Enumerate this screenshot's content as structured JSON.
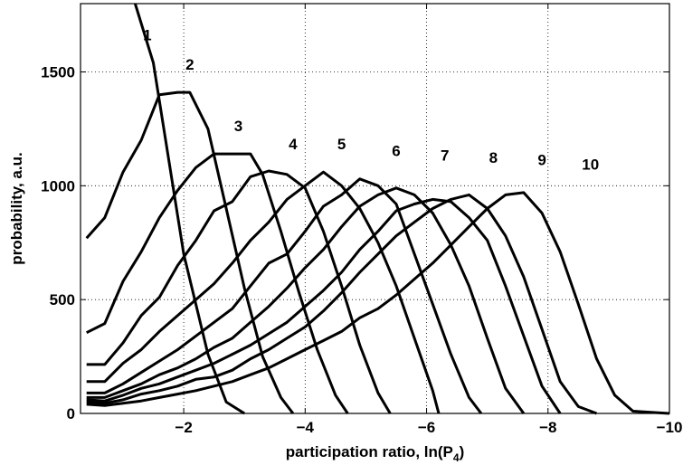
{
  "chart_data": {
    "type": "line",
    "xlabel": "participation ratio,   ln(P",
    "xlabel_sub": "4",
    "xlabel_end": ")",
    "ylabel": "probability,  a.u.",
    "xlim": [
      -0.3,
      -10
    ],
    "ylim": [
      0,
      1800
    ],
    "xticks": [
      {
        "value": -2,
        "label": "−2"
      },
      {
        "value": -4,
        "label": "−4"
      },
      {
        "value": -6,
        "label": "−6"
      },
      {
        "value": -8,
        "label": "−8"
      },
      {
        "value": -10,
        "label": "−10"
      }
    ],
    "yticks": [
      {
        "value": 0,
        "label": "0"
      },
      {
        "value": 500,
        "label": "500"
      },
      {
        "value": 1000,
        "label": "1000"
      },
      {
        "value": 1500,
        "label": "1500"
      }
    ],
    "grid": true,
    "series": [
      {
        "name": "1",
        "label_pos": [
          -1.4,
          1640
        ],
        "x": [
          -1.2,
          -1.5,
          -2.0,
          -2.4,
          -2.7,
          -3.0
        ],
        "y": [
          1800,
          1540,
          700,
          260,
          50,
          0
        ]
      },
      {
        "name": "2",
        "label_pos": [
          -2.1,
          1510
        ],
        "x": [
          -0.4,
          -0.7,
          -1.0,
          -1.3,
          -1.6,
          -1.9,
          -2.1,
          -2.4,
          -2.7,
          -3.0,
          -3.3,
          -3.6,
          -3.8
        ],
        "y": [
          770,
          860,
          1060,
          1200,
          1400,
          1410,
          1410,
          1250,
          900,
          550,
          250,
          70,
          0
        ]
      },
      {
        "name": "3",
        "label_pos": [
          -2.9,
          1240
        ],
        "x": [
          -0.4,
          -0.7,
          -1.0,
          -1.3,
          -1.6,
          -1.9,
          -2.2,
          -2.5,
          -2.8,
          -3.1,
          -3.3,
          -3.6,
          -3.9,
          -4.2,
          -4.5,
          -4.7
        ],
        "y": [
          355,
          395,
          580,
          710,
          860,
          980,
          1080,
          1140,
          1140,
          1140,
          1050,
          800,
          530,
          280,
          80,
          0
        ]
      },
      {
        "name": "4",
        "label_pos": [
          -3.8,
          1160
        ],
        "x": [
          -0.4,
          -0.7,
          -1.0,
          -1.3,
          -1.6,
          -1.9,
          -2.2,
          -2.5,
          -2.8,
          -3.1,
          -3.4,
          -3.7,
          -4.0,
          -4.3,
          -4.6,
          -4.9,
          -5.2,
          -5.4
        ],
        "y": [
          215,
          215,
          310,
          430,
          510,
          650,
          760,
          890,
          930,
          1040,
          1065,
          1050,
          990,
          800,
          560,
          300,
          90,
          0
        ]
      },
      {
        "name": "5",
        "label_pos": [
          -4.6,
          1160
        ],
        "x": [
          -0.4,
          -0.7,
          -1.0,
          -1.3,
          -1.6,
          -1.9,
          -2.2,
          -2.5,
          -2.8,
          -3.1,
          -3.4,
          -3.7,
          -4.0,
          -4.3,
          -4.6,
          -4.9,
          -5.2,
          -5.5,
          -5.8,
          -6.1,
          -6.2
        ],
        "y": [
          140,
          140,
          220,
          280,
          360,
          430,
          500,
          570,
          660,
          760,
          840,
          940,
          1000,
          1060,
          1000,
          900,
          750,
          560,
          330,
          100,
          0
        ]
      },
      {
        "name": "6",
        "label_pos": [
          -5.5,
          1130
        ],
        "x": [
          -0.4,
          -0.7,
          -1.0,
          -1.3,
          -1.6,
          -1.9,
          -2.2,
          -2.5,
          -2.8,
          -3.1,
          -3.4,
          -3.7,
          -4.0,
          -4.3,
          -4.6,
          -4.9,
          -5.2,
          -5.5,
          -5.8,
          -6.1,
          -6.4,
          -6.7,
          -6.9
        ],
        "y": [
          90,
          90,
          130,
          180,
          230,
          280,
          340,
          400,
          460,
          560,
          660,
          700,
          800,
          910,
          960,
          1030,
          1000,
          920,
          700,
          480,
          260,
          70,
          0
        ]
      },
      {
        "name": "7",
        "label_pos": [
          -6.3,
          1110
        ],
        "x": [
          -0.4,
          -0.7,
          -1.0,
          -1.3,
          -1.6,
          -1.9,
          -2.2,
          -2.5,
          -2.8,
          -3.1,
          -3.4,
          -3.7,
          -4.0,
          -4.3,
          -4.6,
          -4.9,
          -5.2,
          -5.5,
          -5.8,
          -6.1,
          -6.4,
          -6.7,
          -7.0,
          -7.3,
          -7.6
        ],
        "y": [
          70,
          70,
          100,
          130,
          170,
          200,
          240,
          290,
          330,
          400,
          470,
          550,
          640,
          720,
          820,
          910,
          960,
          990,
          960,
          880,
          740,
          560,
          330,
          110,
          0
        ]
      },
      {
        "name": "8",
        "label_pos": [
          -7.1,
          1100
        ],
        "x": [
          -0.4,
          -0.7,
          -1.0,
          -1.3,
          -1.6,
          -1.9,
          -2.2,
          -2.5,
          -2.8,
          -3.1,
          -3.4,
          -3.7,
          -4.0,
          -4.3,
          -4.6,
          -4.9,
          -5.2,
          -5.5,
          -5.8,
          -6.1,
          -6.4,
          -6.7,
          -7.0,
          -7.3,
          -7.6,
          -7.9,
          -8.2
        ],
        "y": [
          60,
          55,
          80,
          110,
          130,
          160,
          190,
          220,
          260,
          300,
          350,
          400,
          470,
          540,
          620,
          720,
          800,
          890,
          920,
          940,
          930,
          860,
          760,
          560,
          340,
          120,
          0
        ]
      },
      {
        "name": "9",
        "label_pos": [
          -7.9,
          1090
        ],
        "x": [
          -0.4,
          -0.7,
          -1.0,
          -1.3,
          -1.6,
          -1.9,
          -2.2,
          -2.5,
          -2.8,
          -3.1,
          -3.4,
          -3.7,
          -4.0,
          -4.3,
          -4.6,
          -4.9,
          -5.2,
          -5.5,
          -5.8,
          -6.1,
          -6.4,
          -6.7,
          -7.0,
          -7.3,
          -7.6,
          -7.9,
          -8.2,
          -8.5,
          -8.8
        ],
        "y": [
          50,
          45,
          60,
          85,
          100,
          120,
          150,
          160,
          190,
          240,
          280,
          330,
          380,
          450,
          530,
          620,
          700,
          780,
          840,
          900,
          940,
          960,
          900,
          780,
          600,
          370,
          140,
          30,
          0
        ]
      },
      {
        "name": "10",
        "label_pos": [
          -8.7,
          1070
        ],
        "x": [
          -0.4,
          -0.7,
          -1.0,
          -1.3,
          -1.6,
          -1.9,
          -2.2,
          -2.5,
          -2.8,
          -3.1,
          -3.4,
          -3.7,
          -4.0,
          -4.3,
          -4.6,
          -4.9,
          -5.2,
          -5.5,
          -5.8,
          -6.1,
          -6.4,
          -6.7,
          -7.0,
          -7.3,
          -7.6,
          -7.9,
          -8.2,
          -8.5,
          -8.8,
          -9.1,
          -9.4,
          -10.0
        ],
        "y": [
          40,
          35,
          45,
          55,
          70,
          85,
          100,
          120,
          140,
          170,
          200,
          240,
          280,
          320,
          360,
          420,
          460,
          520,
          590,
          660,
          740,
          820,
          900,
          960,
          970,
          880,
          710,
          480,
          240,
          80,
          10,
          0
        ]
      }
    ]
  }
}
